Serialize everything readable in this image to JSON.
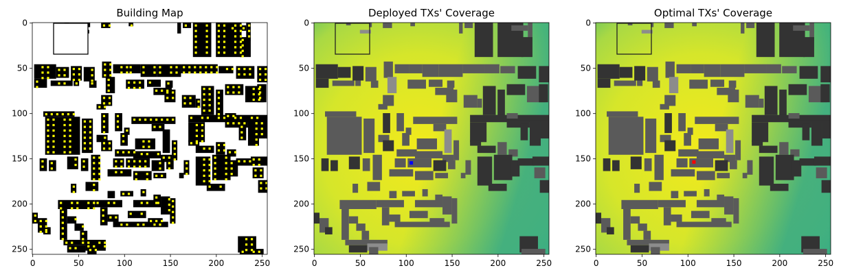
{
  "chart_data": [
    {
      "type": "heatmap",
      "title": "Building Map",
      "xlim": [
        0,
        255
      ],
      "ylim": [
        255,
        0
      ],
      "xticks": [
        0,
        50,
        100,
        150,
        200,
        250
      ],
      "yticks": [
        0,
        50,
        100,
        150,
        200,
        250
      ],
      "grid": false,
      "colors": {
        "background": "#ffffff",
        "building": "#000000",
        "candidate": "#ffff00"
      }
    },
    {
      "type": "heatmap",
      "title": "Deployed TXs' Coverage",
      "xlim": [
        0,
        255
      ],
      "ylim": [
        255,
        0
      ],
      "xticks": [
        0,
        50,
        100,
        150,
        200,
        250
      ],
      "yticks": [
        0,
        50,
        100,
        150,
        200,
        250
      ],
      "grid": false,
      "transmitter": {
        "x": 106,
        "y": 155,
        "color": "#0000ff"
      },
      "colors": {
        "coverage_high": "#f2ea1c",
        "coverage_mid": "#b6dc3a",
        "coverage_low": "#3cb584",
        "building_dark": "#333333",
        "building_mid": "#5a5a5a",
        "building_light": "#8c8c8c"
      }
    },
    {
      "type": "heatmap",
      "title": "Optimal TXs' Coverage",
      "xlim": [
        0,
        255
      ],
      "ylim": [
        255,
        0
      ],
      "xticks": [
        0,
        50,
        100,
        150,
        200,
        250
      ],
      "yticks": [
        0,
        50,
        100,
        150,
        200,
        250
      ],
      "grid": false,
      "transmitter": {
        "x": 107,
        "y": 154,
        "color": "#ff0000"
      },
      "colors": {
        "coverage_high": "#f2ea1c",
        "coverage_mid": "#b6dc3a",
        "coverage_low": "#3cb584",
        "building_dark": "#333333",
        "building_mid": "#5a5a5a",
        "building_light": "#8c8c8c"
      }
    }
  ]
}
